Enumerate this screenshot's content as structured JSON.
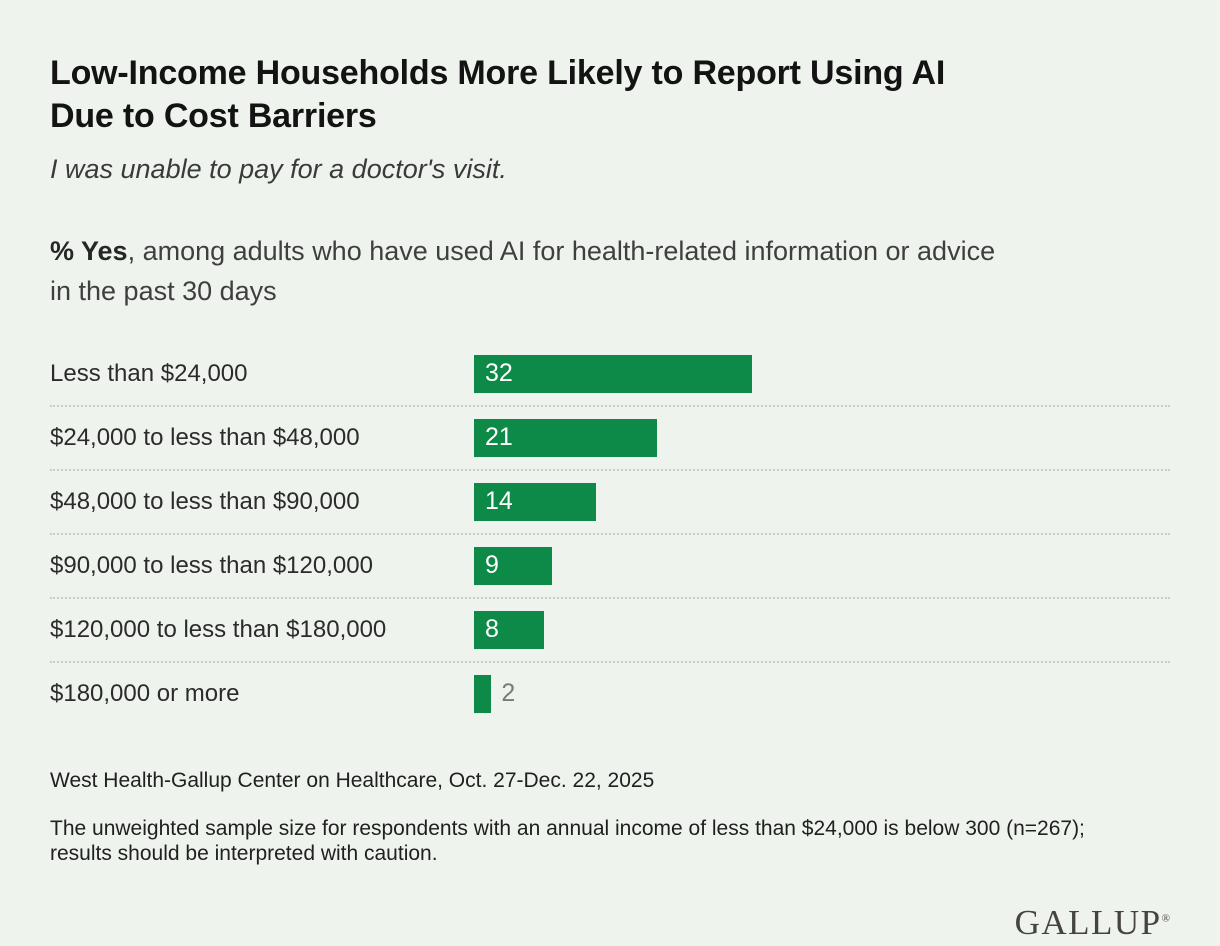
{
  "page": {
    "background_color": "#eef4ed"
  },
  "chart_data": {
    "type": "bar",
    "orientation": "horizontal",
    "title": "Low-Income Households More Likely to Report Using AI\nDue to Cost Barriers",
    "subtitle": "I was unable to pay for a doctor's visit.",
    "measure_label": "% Yes",
    "measure_description": ", among adults who have used AI for health-related information or advice in the past 30 days",
    "categories": [
      "Less than $24,000",
      "$24,000 to less than $48,000",
      "$48,000 to less than $90,000",
      "$90,000 to less than $120,000",
      "$120,000 to less than $180,000",
      "$180,000 or more"
    ],
    "values": [
      32,
      21,
      14,
      9,
      8,
      2
    ],
    "value_axis_max": 80,
    "xlabel": "",
    "ylabel": "",
    "legend": "none",
    "grid": "dotted-row-separators",
    "bar_color": "#0d8948",
    "value_label_inside_color": "#ffffff",
    "value_label_outside_color": "#797c75",
    "row_separator_color": "#c7cec6"
  },
  "footer": {
    "source": "West Health-Gallup Center on Healthcare, Oct. 27-Dec. 22, 2025",
    "note": "The unweighted sample size for respondents with an annual income of less than $24,000 is below 300 (n=267); results should be interpreted with caution.",
    "logo_text": "GALLUP",
    "logo_registered_mark": "®"
  }
}
